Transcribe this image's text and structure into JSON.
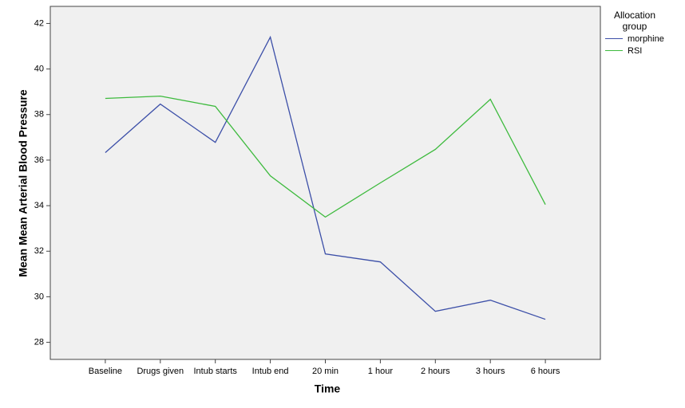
{
  "chart_data": {
    "type": "line",
    "x_label": "Time",
    "y_label": "Mean Mean Arterial Blood Pressure",
    "categories": [
      "Baseline",
      "Drugs given",
      "Intub starts",
      "Intub end",
      "20 min",
      "1 hour",
      "2 hours",
      "3 hours",
      "6 hours"
    ],
    "series": [
      {
        "name": "morphine",
        "color": "#3c4fa8",
        "values": [
          36.33,
          38.46,
          36.78,
          41.4,
          31.88,
          31.53,
          29.36,
          29.85,
          29.01
        ]
      },
      {
        "name": "RSI",
        "color": "#3dba3d",
        "values": [
          38.71,
          38.81,
          38.36,
          35.31,
          33.5,
          35.0,
          36.47,
          38.67,
          34.05
        ]
      }
    ],
    "ylim": [
      27.25,
      42.75
    ],
    "yticks": [
      28,
      30,
      32,
      34,
      36,
      38,
      40,
      42
    ],
    "legend_title": "Allocation group",
    "legend_position": "right",
    "grid": false
  }
}
